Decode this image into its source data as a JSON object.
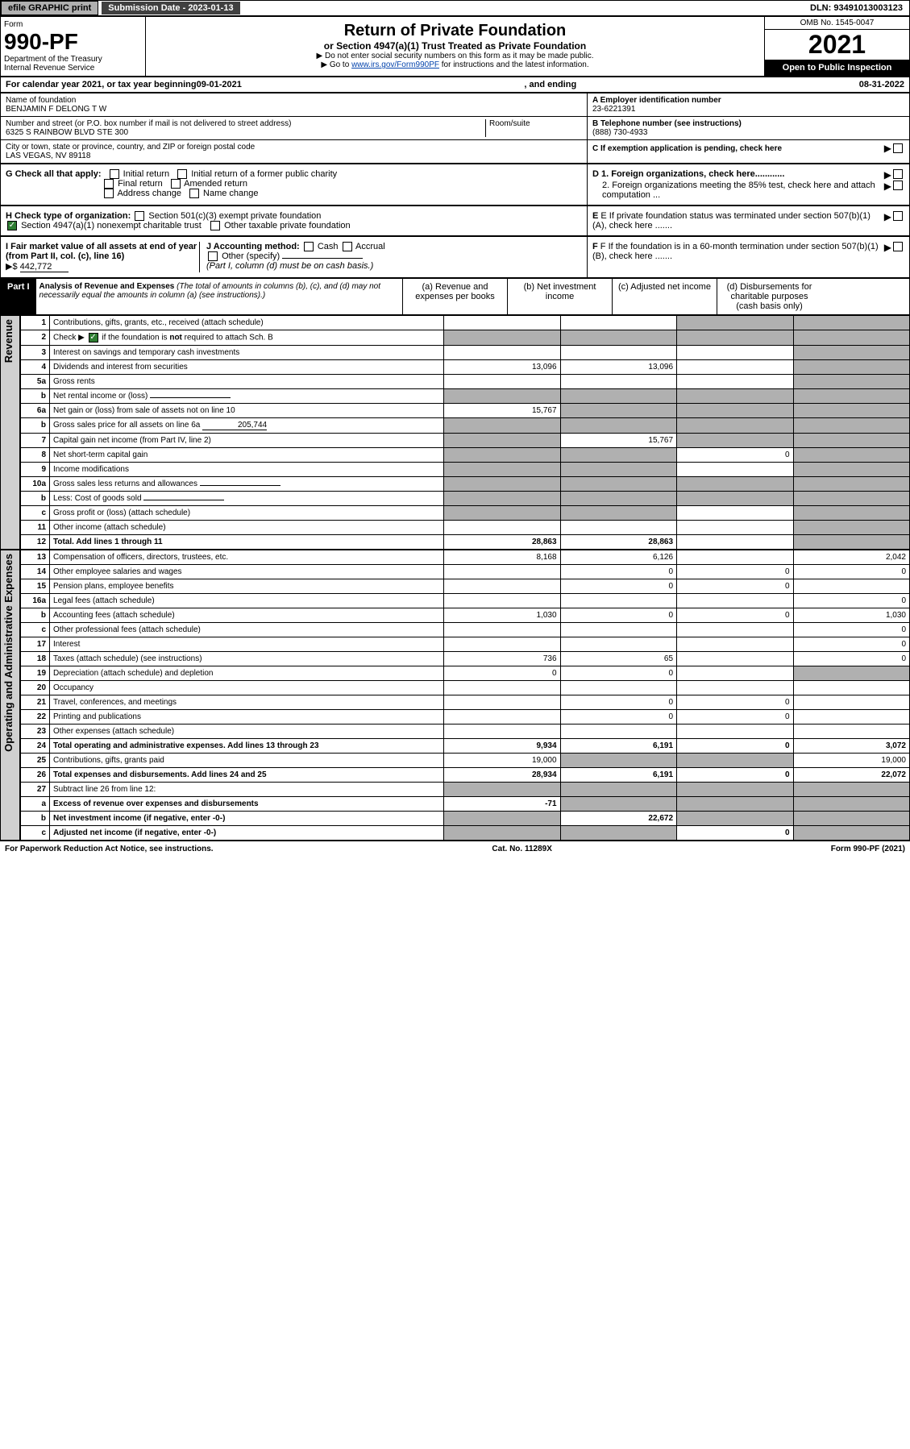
{
  "topbar": {
    "efile": "efile GRAPHIC print",
    "submission_label": "Submission Date - 2023-01-13",
    "dln": "DLN: 93491013003123"
  },
  "header": {
    "form_word": "Form",
    "form_number": "990-PF",
    "dept": "Department of the Treasury",
    "irs": "Internal Revenue Service",
    "title": "Return of Private Foundation",
    "subtitle": "or Section 4947(a)(1) Trust Treated as Private Foundation",
    "instr1": "▶ Do not enter social security numbers on this form as it may be made public.",
    "instr2_prefix": "▶ Go to ",
    "instr2_link": "www.irs.gov/Form990PF",
    "instr2_suffix": " for instructions and the latest information.",
    "omb": "OMB No. 1545-0047",
    "year": "2021",
    "open": "Open to Public Inspection"
  },
  "calendar": {
    "prefix": "For calendar year 2021, or tax year beginning ",
    "begin": "09-01-2021",
    "mid": " , and ending ",
    "end": "08-31-2022"
  },
  "foundation": {
    "name_label": "Name of foundation",
    "name": "BENJAMIN F DELONG T W",
    "addr_label": "Number and street (or P.O. box number if mail is not delivered to street address)",
    "addr": "6325 S RAINBOW BLVD STE 300",
    "room_label": "Room/suite",
    "city_label": "City or town, state or province, country, and ZIP or foreign postal code",
    "city": "LAS VEGAS, NV  89118",
    "ein_label": "A Employer identification number",
    "ein": "23-6221391",
    "phone_label": "B Telephone number (see instructions)",
    "phone": "(888) 730-4933",
    "c_label": "C If exemption application is pending, check here"
  },
  "checks": {
    "g_label": "G Check all that apply:",
    "g_opts": [
      "Initial return",
      "Initial return of a former public charity",
      "Final return",
      "Amended return",
      "Address change",
      "Name change"
    ],
    "h_label": "H Check type of organization:",
    "h_501": "Section 501(c)(3) exempt private foundation",
    "h_4947": "Section 4947(a)(1) nonexempt charitable trust",
    "h_other": "Other taxable private foundation",
    "i_label": "I Fair market value of all assets at end of year (from Part II, col. (c), line 16)",
    "i_arrow": "▶$",
    "i_value": "442,772",
    "j_label": "J Accounting method:",
    "j_cash": "Cash",
    "j_accrual": "Accrual",
    "j_other": "Other (specify)",
    "j_note": "(Part I, column (d) must be on cash basis.)",
    "d1": "D 1. Foreign organizations, check here............",
    "d2": "2. Foreign organizations meeting the 85% test, check here and attach computation ...",
    "e": "E  If private foundation status was terminated under section 507(b)(1)(A), check here .......",
    "f": "F  If the foundation is in a 60-month termination under section 507(b)(1)(B), check here .......",
    "arrow": "▶"
  },
  "part1": {
    "label": "Part I",
    "title": "Analysis of Revenue and Expenses",
    "note": "(The total of amounts in columns (b), (c), and (d) may not necessarily equal the amounts in column (a) (see instructions).)",
    "col_a": "(a) Revenue and expenses per books",
    "col_b": "(b) Net investment income",
    "col_c": "(c) Adjusted net income",
    "col_d": "(d) Disbursements for charitable purposes (cash basis only)"
  },
  "sections": {
    "revenue": "Revenue",
    "expenses": "Operating and Administrative Expenses"
  },
  "rows": [
    {
      "n": "1",
      "label": "Contributions, gifts, grants, etc., received (attach schedule)",
      "a": "",
      "b": "",
      "c": "shade",
      "d": "shade"
    },
    {
      "n": "2",
      "label": "Check ▶ ☑ if the foundation is not required to attach Sch. B",
      "a": "shade",
      "b": "shade",
      "c": "shade",
      "d": "shade",
      "checkbox": true
    },
    {
      "n": "3",
      "label": "Interest on savings and temporary cash investments",
      "a": "",
      "b": "",
      "c": "",
      "d": "shade"
    },
    {
      "n": "4",
      "label": "Dividends and interest from securities",
      "a": "13,096",
      "b": "13,096",
      "c": "",
      "d": "shade"
    },
    {
      "n": "5a",
      "label": "Gross rents",
      "a": "",
      "b": "",
      "c": "",
      "d": "shade"
    },
    {
      "n": "b",
      "label": "Net rental income or (loss)",
      "a": "shade",
      "b": "shade",
      "c": "shade",
      "d": "shade",
      "inline": true
    },
    {
      "n": "6a",
      "label": "Net gain or (loss) from sale of assets not on line 10",
      "a": "15,767",
      "b": "shade",
      "c": "shade",
      "d": "shade"
    },
    {
      "n": "b",
      "label": "Gross sales price for all assets on line 6a",
      "a": "shade",
      "b": "shade",
      "c": "shade",
      "d": "shade",
      "inline_val": "205,744"
    },
    {
      "n": "7",
      "label": "Capital gain net income (from Part IV, line 2)",
      "a": "shade",
      "b": "15,767",
      "c": "shade",
      "d": "shade"
    },
    {
      "n": "8",
      "label": "Net short-term capital gain",
      "a": "shade",
      "b": "shade",
      "c": "0",
      "d": "shade"
    },
    {
      "n": "9",
      "label": "Income modifications",
      "a": "shade",
      "b": "shade",
      "c": "",
      "d": "shade"
    },
    {
      "n": "10a",
      "label": "Gross sales less returns and allowances",
      "a": "shade",
      "b": "shade",
      "c": "shade",
      "d": "shade",
      "inline": true
    },
    {
      "n": "b",
      "label": "Less: Cost of goods sold",
      "a": "shade",
      "b": "shade",
      "c": "shade",
      "d": "shade",
      "inline": true
    },
    {
      "n": "c",
      "label": "Gross profit or (loss) (attach schedule)",
      "a": "shade",
      "b": "shade",
      "c": "",
      "d": "shade"
    },
    {
      "n": "11",
      "label": "Other income (attach schedule)",
      "a": "",
      "b": "",
      "c": "",
      "d": "shade"
    },
    {
      "n": "12",
      "label": "Total. Add lines 1 through 11",
      "a": "28,863",
      "b": "28,863",
      "c": "",
      "d": "shade",
      "bold": true
    }
  ],
  "exp_rows": [
    {
      "n": "13",
      "label": "Compensation of officers, directors, trustees, etc.",
      "a": "8,168",
      "b": "6,126",
      "c": "",
      "d": "2,042"
    },
    {
      "n": "14",
      "label": "Other employee salaries and wages",
      "a": "",
      "b": "0",
      "c": "0",
      "d": "0"
    },
    {
      "n": "15",
      "label": "Pension plans, employee benefits",
      "a": "",
      "b": "0",
      "c": "0",
      "d": ""
    },
    {
      "n": "16a",
      "label": "Legal fees (attach schedule)",
      "a": "",
      "b": "",
      "c": "",
      "d": "0"
    },
    {
      "n": "b",
      "label": "Accounting fees (attach schedule)",
      "a": "1,030",
      "b": "0",
      "c": "0",
      "d": "1,030"
    },
    {
      "n": "c",
      "label": "Other professional fees (attach schedule)",
      "a": "",
      "b": "",
      "c": "",
      "d": "0"
    },
    {
      "n": "17",
      "label": "Interest",
      "a": "",
      "b": "",
      "c": "",
      "d": "0"
    },
    {
      "n": "18",
      "label": "Taxes (attach schedule) (see instructions)",
      "a": "736",
      "b": "65",
      "c": "",
      "d": "0"
    },
    {
      "n": "19",
      "label": "Depreciation (attach schedule) and depletion",
      "a": "0",
      "b": "0",
      "c": "",
      "d": "shade"
    },
    {
      "n": "20",
      "label": "Occupancy",
      "a": "",
      "b": "",
      "c": "",
      "d": ""
    },
    {
      "n": "21",
      "label": "Travel, conferences, and meetings",
      "a": "",
      "b": "0",
      "c": "0",
      "d": ""
    },
    {
      "n": "22",
      "label": "Printing and publications",
      "a": "",
      "b": "0",
      "c": "0",
      "d": ""
    },
    {
      "n": "23",
      "label": "Other expenses (attach schedule)",
      "a": "",
      "b": "",
      "c": "",
      "d": ""
    },
    {
      "n": "24",
      "label": "Total operating and administrative expenses. Add lines 13 through 23",
      "a": "9,934",
      "b": "6,191",
      "c": "0",
      "d": "3,072",
      "bold": true
    },
    {
      "n": "25",
      "label": "Contributions, gifts, grants paid",
      "a": "19,000",
      "b": "shade",
      "c": "shade",
      "d": "19,000"
    },
    {
      "n": "26",
      "label": "Total expenses and disbursements. Add lines 24 and 25",
      "a": "28,934",
      "b": "6,191",
      "c": "0",
      "d": "22,072",
      "bold": true
    },
    {
      "n": "27",
      "label": "Subtract line 26 from line 12:",
      "a": "shade",
      "b": "shade",
      "c": "shade",
      "d": "shade"
    },
    {
      "n": "a",
      "label": "Excess of revenue over expenses and disbursements",
      "a": "-71",
      "b": "shade",
      "c": "shade",
      "d": "shade",
      "bold": true
    },
    {
      "n": "b",
      "label": "Net investment income (if negative, enter -0-)",
      "a": "shade",
      "b": "22,672",
      "c": "shade",
      "d": "shade",
      "bold": true
    },
    {
      "n": "c",
      "label": "Adjusted net income (if negative, enter -0-)",
      "a": "shade",
      "b": "shade",
      "c": "0",
      "d": "shade",
      "bold": true
    }
  ],
  "footer": {
    "left": "For Paperwork Reduction Act Notice, see instructions.",
    "mid": "Cat. No. 11289X",
    "right": "Form 990-PF (2021)"
  }
}
